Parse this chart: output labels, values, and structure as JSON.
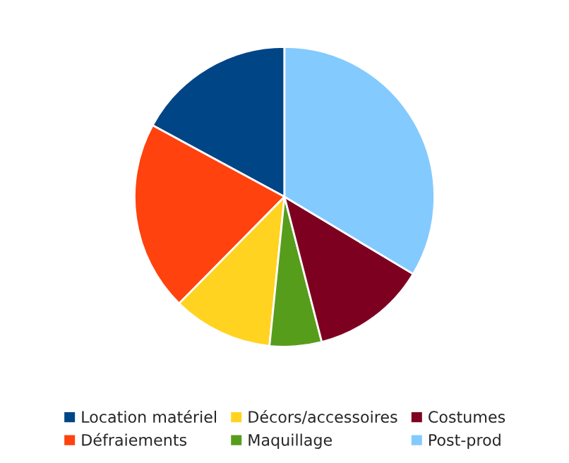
{
  "chart_data": {
    "type": "pie",
    "categories": [
      "Location matériel",
      "Défraiements",
      "Décors/accessoires",
      "Maquillage",
      "Costumes",
      "Post-prod"
    ],
    "values": [
      17.1,
      20.5,
      10.8,
      5.6,
      12.4,
      33.6
    ],
    "colors": [
      "#004586",
      "#ff420e",
      "#ffd320",
      "#579d1c",
      "#7e0021",
      "#83caff"
    ],
    "legend": "bottom"
  }
}
